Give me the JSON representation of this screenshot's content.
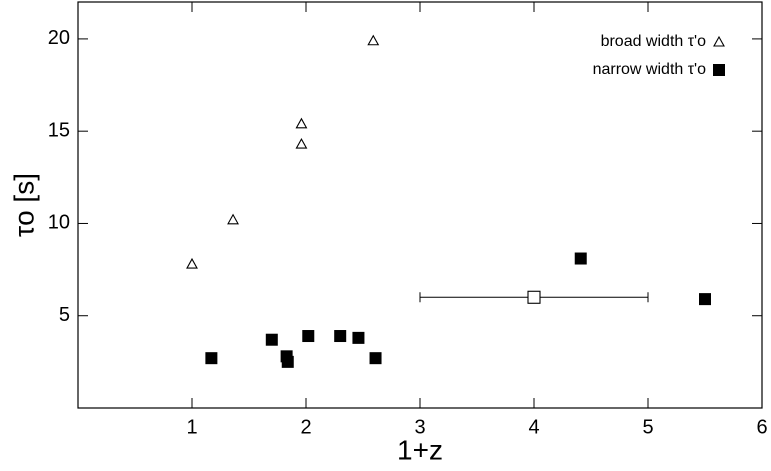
{
  "chart_data": {
    "type": "scatter",
    "xlabel": "1+z",
    "ylabel": "τo [s]",
    "xlim": [
      0,
      6
    ],
    "ylim": [
      0,
      22
    ],
    "xticks": [
      1,
      2,
      3,
      4,
      5,
      6
    ],
    "yticks": [
      5,
      10,
      15,
      20
    ],
    "legend": "upper right",
    "series": [
      {
        "name": "broad width τ'o",
        "marker": "triangle-open",
        "color": "#000000",
        "x": [
          1.0,
          1.36,
          1.96,
          1.96,
          2.59
        ],
        "values": [
          7.8,
          10.2,
          15.4,
          14.3,
          19.9
        ]
      },
      {
        "name": "narrow width τ'o",
        "marker": "square-filled",
        "color": "#000000",
        "x": [
          1.17,
          1.7,
          1.83,
          1.84,
          2.02,
          2.3,
          2.46,
          2.61,
          4.41,
          5.5
        ],
        "values": [
          2.7,
          3.7,
          2.8,
          2.5,
          3.9,
          3.9,
          3.8,
          2.7,
          8.1,
          5.9
        ]
      }
    ],
    "error_point": {
      "marker": "square-open",
      "x": 4.0,
      "y": 6.0,
      "xerr": 1.0
    }
  }
}
